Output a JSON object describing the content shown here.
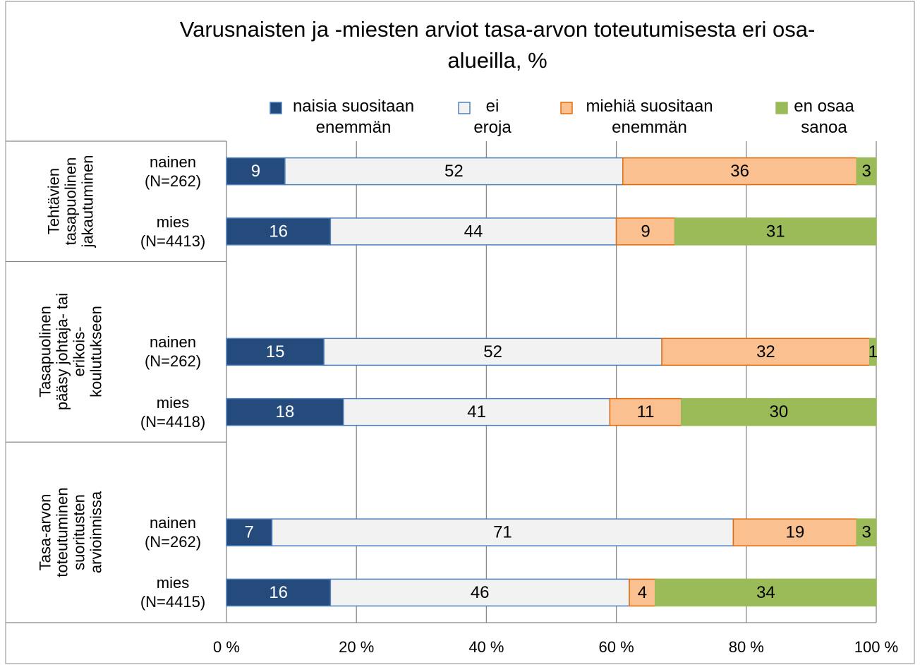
{
  "chart_data": {
    "type": "stacked-bar-horizontal",
    "title": "Varusnaisten ja -miesten arviot tasa-arvon toteutumisesta eri osa-alueilla, %",
    "groups": [
      {
        "name": "Tehtävien tasapuolinen jakautuminen",
        "categories": [
          "nainen (N=262)",
          "mies (N=4413)"
        ]
      },
      {
        "name": "Tasapuolinen pääsy johtaja- tai erikois-koulutukseen",
        "categories": [
          null,
          "nainen (N=262)",
          "mies (N=4418)"
        ]
      },
      {
        "name": "Tasa-arvon toteutuminen suoritusten arvioinnissa",
        "categories": [
          null,
          "nainen (N=262)",
          "mies (N=4415)"
        ]
      }
    ],
    "series": [
      {
        "name": "naisia suositaan enemmän",
        "color": "#254a7c",
        "border": "#4f81bd",
        "label_color": "#ffffff",
        "values": [
          9,
          16,
          null,
          15,
          18,
          null,
          7,
          16
        ]
      },
      {
        "name": "ei eroja",
        "color": "#f2f2f2",
        "border": "#4f81bd",
        "label_color": "#000000",
        "values": [
          52,
          44,
          null,
          52,
          41,
          null,
          71,
          46
        ]
      },
      {
        "name": "miehiä suositaan enemmän",
        "color": "#fac090",
        "border": "#e46c0a",
        "label_color": "#000000",
        "values": [
          36,
          9,
          null,
          32,
          11,
          null,
          19,
          4
        ]
      },
      {
        "name": "en osaa sanoa",
        "color": "#9bbb59",
        "border": "#9bbb59",
        "label_color": "#000000",
        "values": [
          3,
          31,
          null,
          1,
          30,
          null,
          3,
          34
        ]
      }
    ],
    "xlim": [
      0,
      100
    ],
    "xticks": [
      {
        "value": 0,
        "label": "0 %"
      },
      {
        "value": 20,
        "label": "20 %"
      },
      {
        "value": 40,
        "label": "40 %"
      },
      {
        "value": 60,
        "label": "60 %"
      },
      {
        "value": 80,
        "label": "80 %"
      },
      {
        "value": 100,
        "label": "100 %"
      }
    ],
    "grid": true,
    "legend": "top"
  }
}
